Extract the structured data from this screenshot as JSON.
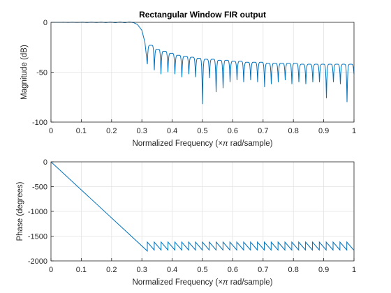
{
  "chart_data": [
    {
      "type": "line",
      "title": "Rectangular Window FIR output",
      "xlabel_prefix": "Normalized Frequency  (",
      "xlabel_math": "×π",
      "xlabel_suffix": " rad/sample)",
      "ylabel": "Magnitude (dB)",
      "xlim": [
        0,
        1
      ],
      "ylim": [
        -100,
        0
      ],
      "xticks": [
        0,
        0.1,
        0.2,
        0.3,
        0.4,
        0.5,
        0.6,
        0.7,
        0.8,
        0.9,
        1
      ],
      "xtick_labels": [
        "0",
        "0.1",
        "0.2",
        "0.3",
        "0.4",
        "0.5",
        "0.6",
        "0.7",
        "0.8",
        "0.9",
        "1"
      ],
      "yticks": [
        -100,
        -50,
        0
      ],
      "ytick_labels": [
        "-100",
        "-50",
        "0"
      ],
      "grid": true,
      "color": "#0072BD",
      "passband": {
        "x_start": 0,
        "x_end": 0.27,
        "level_db": 0
      },
      "transition": {
        "x": [
          0.27,
          0.285,
          0.3,
          0.31,
          0.318
        ],
        "y": [
          0,
          -2,
          -8,
          -20,
          -42
        ]
      },
      "sidelobe_nulls": [
        {
          "x": 0.318,
          "y": -42
        },
        {
          "x": 0.341,
          "y": -48
        },
        {
          "x": 0.363,
          "y": -52
        },
        {
          "x": 0.386,
          "y": -50
        },
        {
          "x": 0.409,
          "y": -52
        },
        {
          "x": 0.432,
          "y": -55
        },
        {
          "x": 0.455,
          "y": -52
        },
        {
          "x": 0.477,
          "y": -55
        },
        {
          "x": 0.5,
          "y": -82
        },
        {
          "x": 0.523,
          "y": -56
        },
        {
          "x": 0.545,
          "y": -70
        },
        {
          "x": 0.568,
          "y": -66
        },
        {
          "x": 0.591,
          "y": -60
        },
        {
          "x": 0.614,
          "y": -58
        },
        {
          "x": 0.636,
          "y": -60
        },
        {
          "x": 0.659,
          "y": -58
        },
        {
          "x": 0.682,
          "y": -60
        },
        {
          "x": 0.705,
          "y": -65
        },
        {
          "x": 0.727,
          "y": -62
        },
        {
          "x": 0.75,
          "y": -60
        },
        {
          "x": 0.773,
          "y": -58
        },
        {
          "x": 0.795,
          "y": -62
        },
        {
          "x": 0.818,
          "y": -60
        },
        {
          "x": 0.841,
          "y": -62
        },
        {
          "x": 0.864,
          "y": -60
        },
        {
          "x": 0.886,
          "y": -60
        },
        {
          "x": 0.909,
          "y": -76
        },
        {
          "x": 0.932,
          "y": -60
        },
        {
          "x": 0.955,
          "y": -62
        },
        {
          "x": 0.977,
          "y": -80
        },
        {
          "x": 1.0,
          "y": -52
        }
      ],
      "sidelobe_peaks": [
        -23,
        -27,
        -29,
        -31,
        -33,
        -34,
        -35,
        -36,
        -37,
        -37,
        -38,
        -38,
        -39,
        -39,
        -40,
        -40,
        -40,
        -41,
        -41,
        -41,
        -41,
        -41,
        -42,
        -42,
        -42,
        -42,
        -42,
        -42,
        -42,
        -42
      ]
    },
    {
      "type": "line",
      "title": "",
      "xlabel_prefix": "Normalized Frequency  (",
      "xlabel_math": "×π",
      "xlabel_suffix": " rad/sample)",
      "ylabel": "Phase (degrees)",
      "xlim": [
        0,
        1
      ],
      "ylim": [
        -2000,
        0
      ],
      "xticks": [
        0,
        0.1,
        0.2,
        0.3,
        0.4,
        0.5,
        0.6,
        0.7,
        0.8,
        0.9,
        1
      ],
      "xtick_labels": [
        "0",
        "0.1",
        "0.2",
        "0.3",
        "0.4",
        "0.5",
        "0.6",
        "0.7",
        "0.8",
        "0.9",
        "1"
      ],
      "yticks": [
        -2000,
        -1500,
        -1000,
        -500,
        0
      ],
      "ytick_labels": [
        "-2000",
        "-1500",
        "-1000",
        "-500",
        "0"
      ],
      "grid": true,
      "color": "#0072BD",
      "linear_segment": {
        "x": [
          0,
          0.318
        ],
        "y": [
          0,
          -1800
        ]
      },
      "sawtooth": {
        "x_start": 0.318,
        "period": 0.0227,
        "top": -1620,
        "bottom": -1780,
        "count": 30
      }
    }
  ]
}
